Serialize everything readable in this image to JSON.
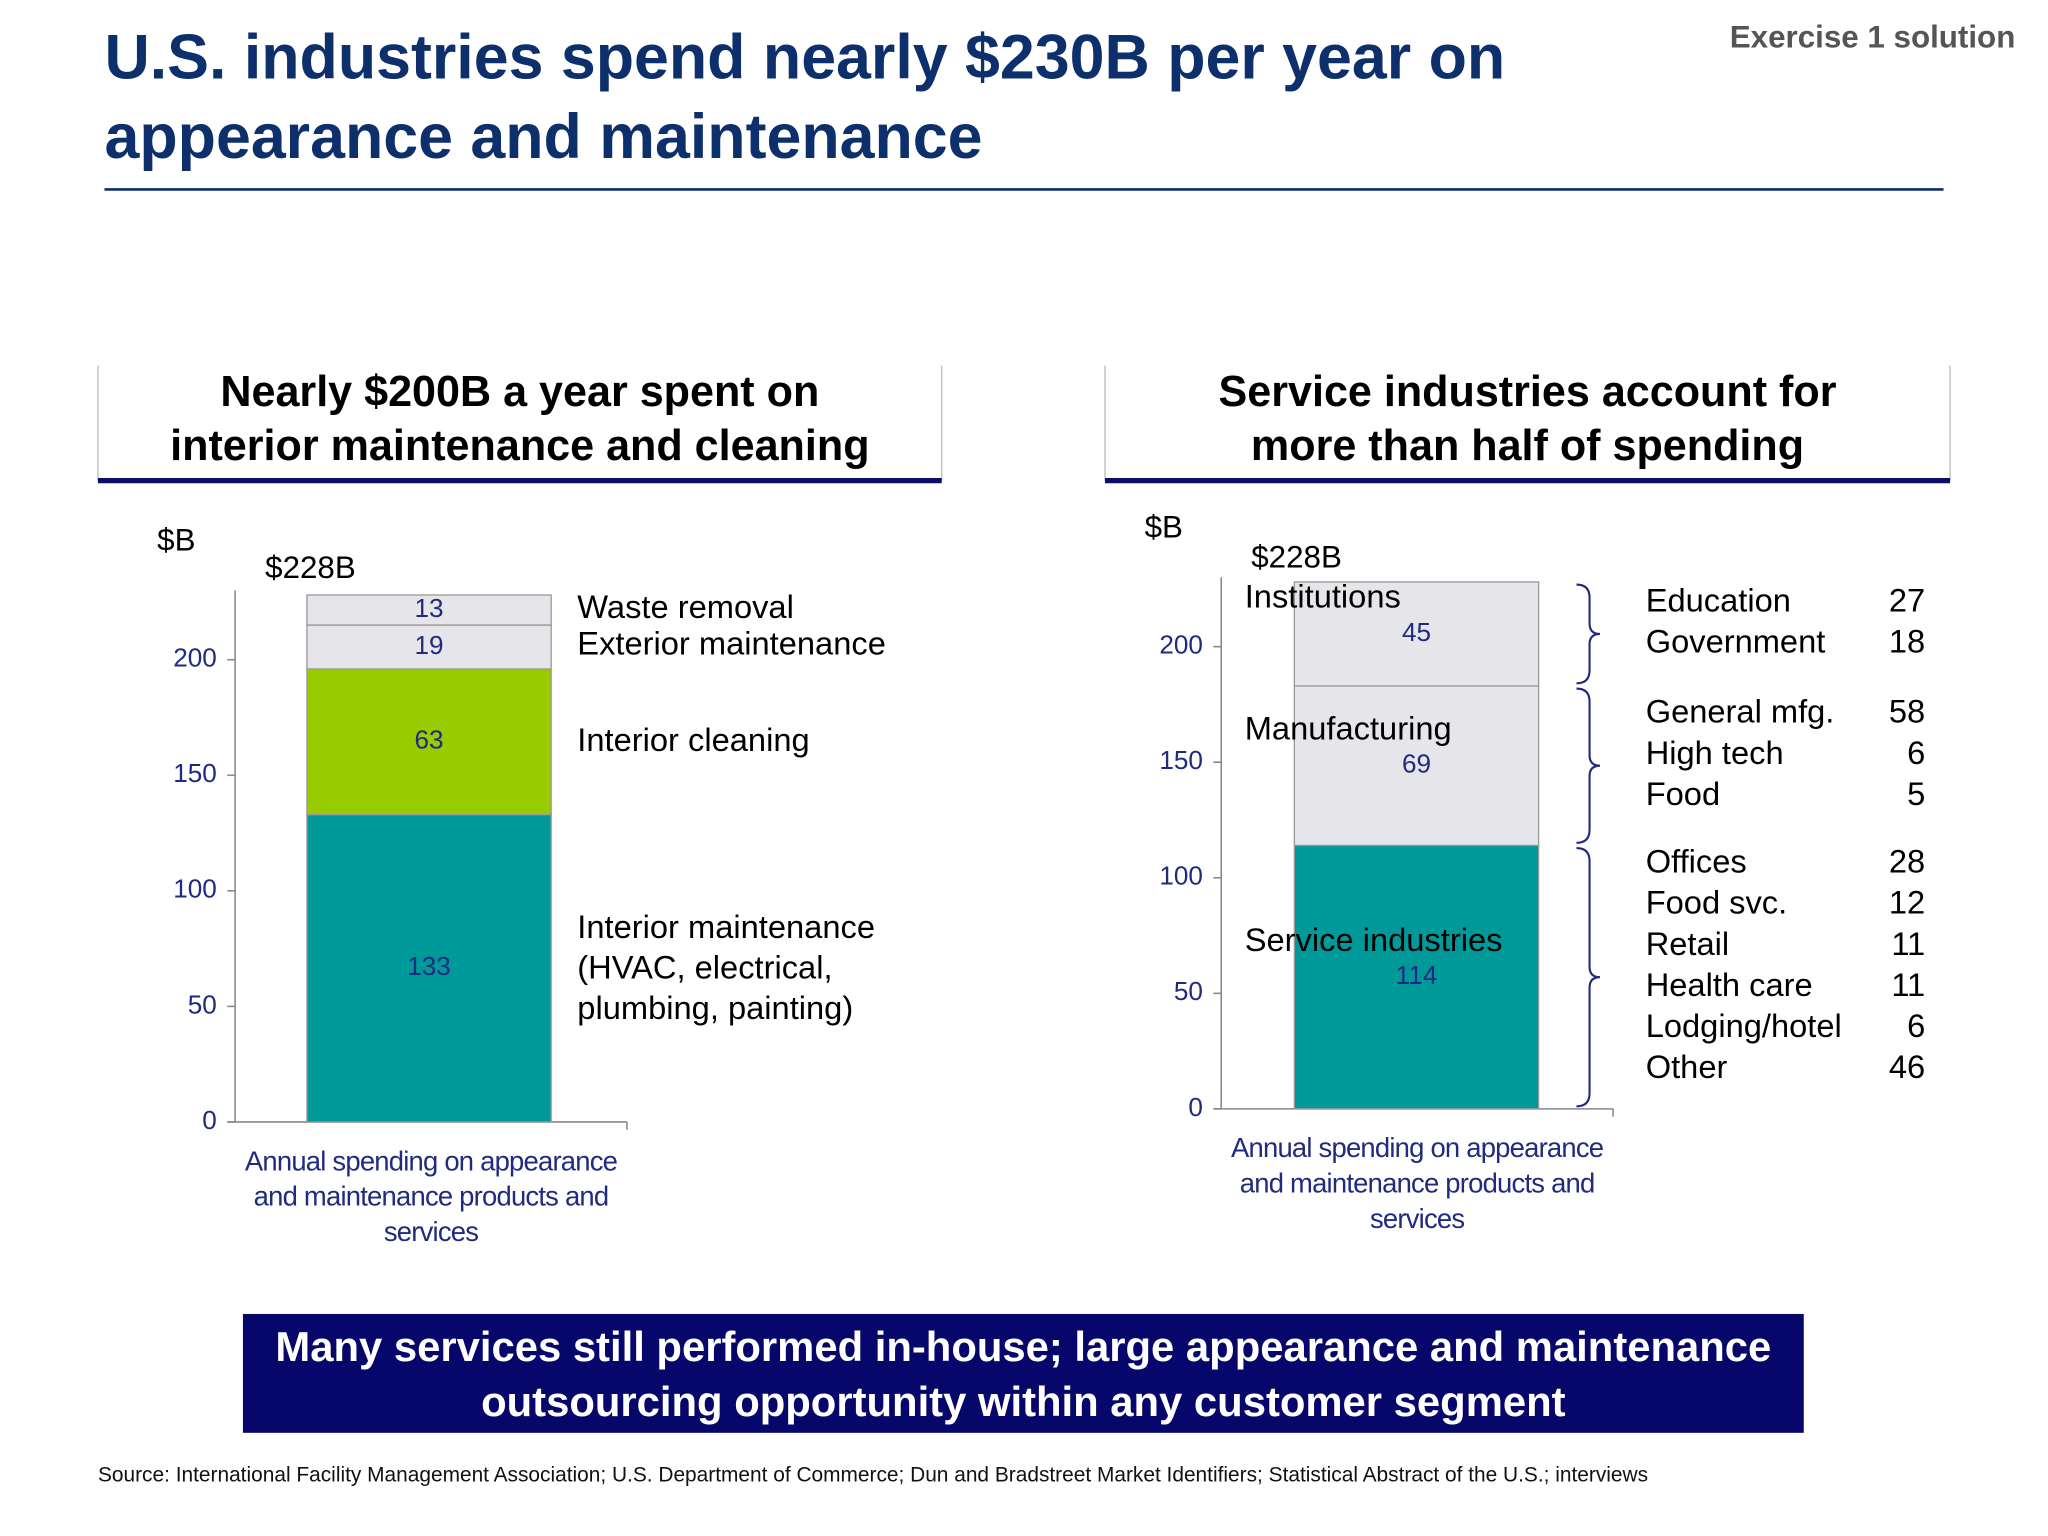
{
  "header": {
    "title": "U.S. industries spend nearly $230B per year on appearance and maintenance",
    "tag": "Exercise 1 solution"
  },
  "chart_data": [
    {
      "type": "stacked-bar",
      "title": "Nearly $200B a year spent on interior maintenance and cleaning",
      "y_label": "$B",
      "total_label": "$228B",
      "categories": [
        "Annual spending on appearance and maintenance products and services"
      ],
      "series": [
        {
          "name": "Interior maintenance (HVAC, electrical, plumbing, painting)",
          "color": "#009999",
          "values": [
            133
          ]
        },
        {
          "name": "Interior cleaning",
          "color": "#99cc00",
          "values": [
            63
          ]
        },
        {
          "name": "Exterior maintenance",
          "color": "#e6e6ea",
          "values": [
            19
          ]
        },
        {
          "name": "Waste removal",
          "color": "#e6e6ea",
          "values": [
            13
          ]
        }
      ],
      "label_position": "right",
      "ylim": [
        0,
        230
      ],
      "yticks": [
        0,
        50,
        100,
        150,
        200
      ]
    },
    {
      "type": "stacked-bar",
      "title": "Service industries account for more than half of spending",
      "y_label": "$B",
      "total_label": "$228B",
      "categories": [
        "Annual spending on appearance and maintenance products and services"
      ],
      "series": [
        {
          "name": "Service industries",
          "color": "#009999",
          "values": [
            114
          ]
        },
        {
          "name": "Manufacturing",
          "color": "#e6e6ea",
          "values": [
            69
          ]
        },
        {
          "name": "Institutions",
          "color": "#e6e6ea",
          "values": [
            45
          ]
        }
      ],
      "label_position": "inside",
      "ylim": [
        0,
        230
      ],
      "yticks": [
        0,
        50,
        100,
        150,
        200
      ],
      "breakdown": [
        [
          {
            "name": "Offices",
            "value": 28
          },
          {
            "name": "Food svc.",
            "value": 12
          },
          {
            "name": "Retail",
            "value": 11
          },
          {
            "name": "Health care",
            "value": 11
          },
          {
            "name": "Lodging/hotel",
            "value": 6
          },
          {
            "name": "Other",
            "value": 46
          }
        ],
        [
          {
            "name": "General mfg.",
            "value": 58
          },
          {
            "name": "High tech",
            "value": 6
          },
          {
            "name": "Food",
            "value": 5
          }
        ],
        [
          {
            "name": "Education",
            "value": 27
          },
          {
            "name": "Government",
            "value": 18
          }
        ]
      ]
    }
  ],
  "footer": {
    "takeaway": "Many services still performed in-house; large appearance and maintenance outsourcing opportunity within any customer segment",
    "source": "Source:  International Facility Management Association; U.S. Department of Commerce; Dun and Bradstreet Market Identifiers; Statistical Abstract of the U.S.; interviews"
  }
}
